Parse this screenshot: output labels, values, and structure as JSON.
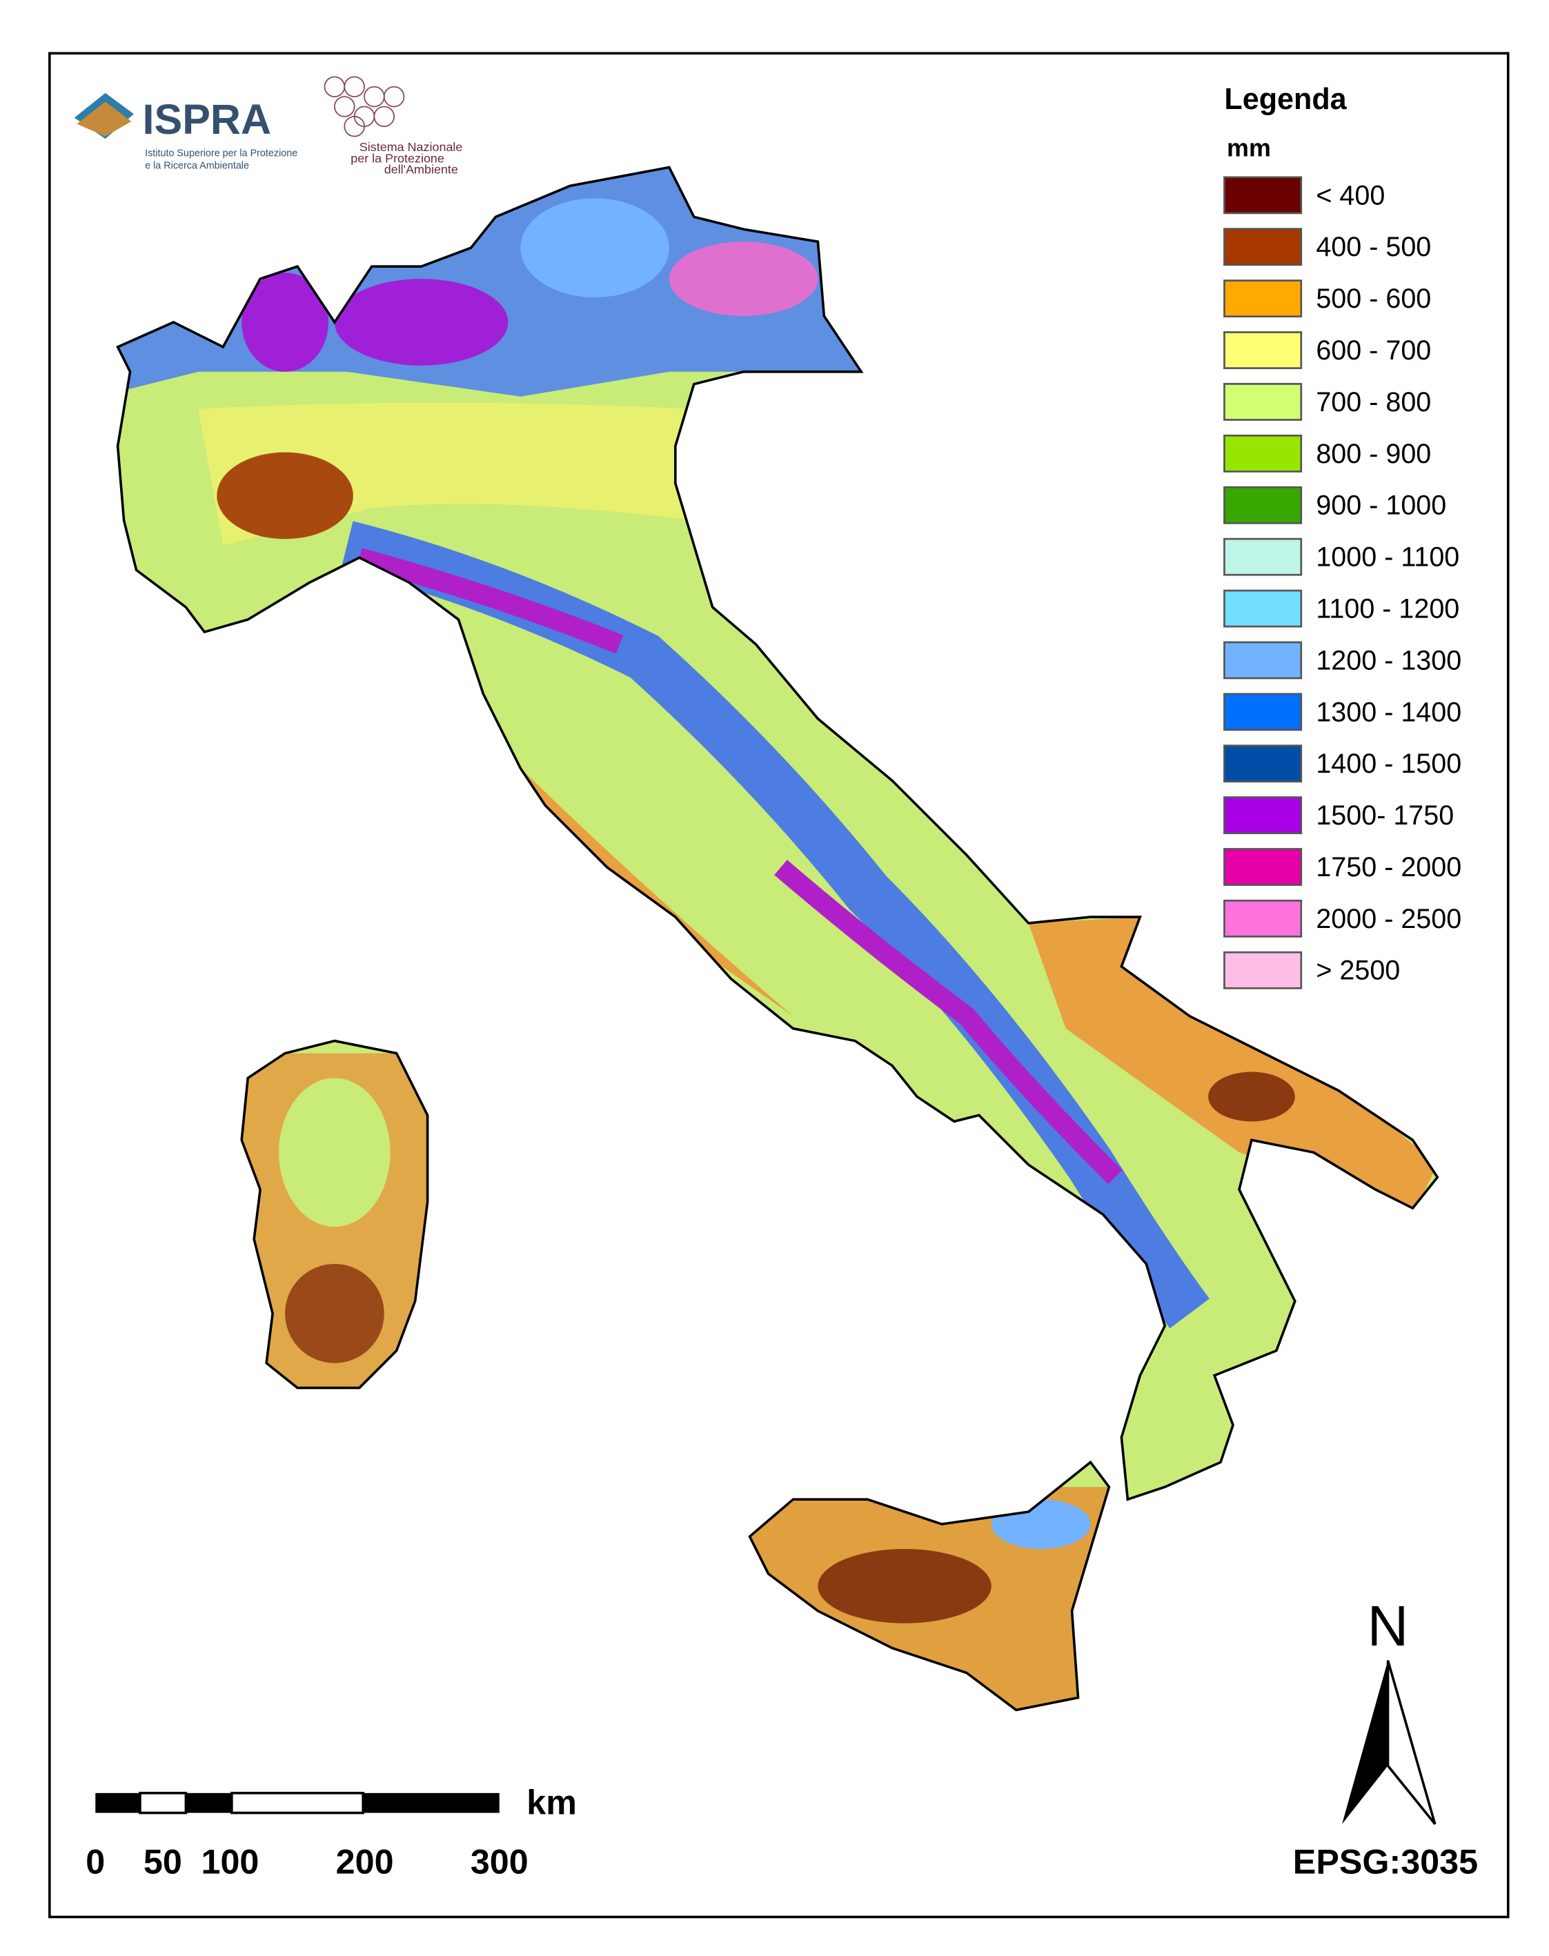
{
  "logos": {
    "ispra": {
      "name": "ISPRA",
      "subtitle": [
        "Istituto Superiore per la Protezione",
        "e la Ricerca Ambientale"
      ]
    },
    "snpa": {
      "lines": [
        "Sistema Nazionale",
        "per la Protezione",
        "dell'Ambiente"
      ]
    }
  },
  "legend": {
    "title": "Legenda",
    "unit": "mm",
    "items": [
      {
        "label": "< 400",
        "color": "#6b0000"
      },
      {
        "label": "400 - 500",
        "color": "#a83800"
      },
      {
        "label": "500 - 600",
        "color": "#ffaa00"
      },
      {
        "label": "600 - 700",
        "color": "#ffff73"
      },
      {
        "label": "700 - 800",
        "color": "#d1ff73"
      },
      {
        "label": "800 - 900",
        "color": "#98e600"
      },
      {
        "label": "900 - 1000",
        "color": "#38a800"
      },
      {
        "label": "1000 - 1100",
        "color": "#bef5e8"
      },
      {
        "label": "1100 - 1200",
        "color": "#73dfff"
      },
      {
        "label": "1200 - 1300",
        "color": "#73b2ff"
      },
      {
        "label": "1300 - 1400",
        "color": "#0070ff"
      },
      {
        "label": "1400 - 1500",
        "color": "#004da8"
      },
      {
        "label": "1500- 1750",
        "color": "#a900e6"
      },
      {
        "label": "1750 - 2000",
        "color": "#e600a9"
      },
      {
        "label": "2000 - 2500",
        "color": "#ff73df"
      },
      {
        "label": "> 2500",
        "color": "#ffbee8"
      }
    ]
  },
  "scale_bar": {
    "unit": "km",
    "ticks": [
      0,
      50,
      100,
      200,
      300
    ]
  },
  "north_arrow": {
    "label": "N"
  },
  "projection": "EPSG:3035"
}
